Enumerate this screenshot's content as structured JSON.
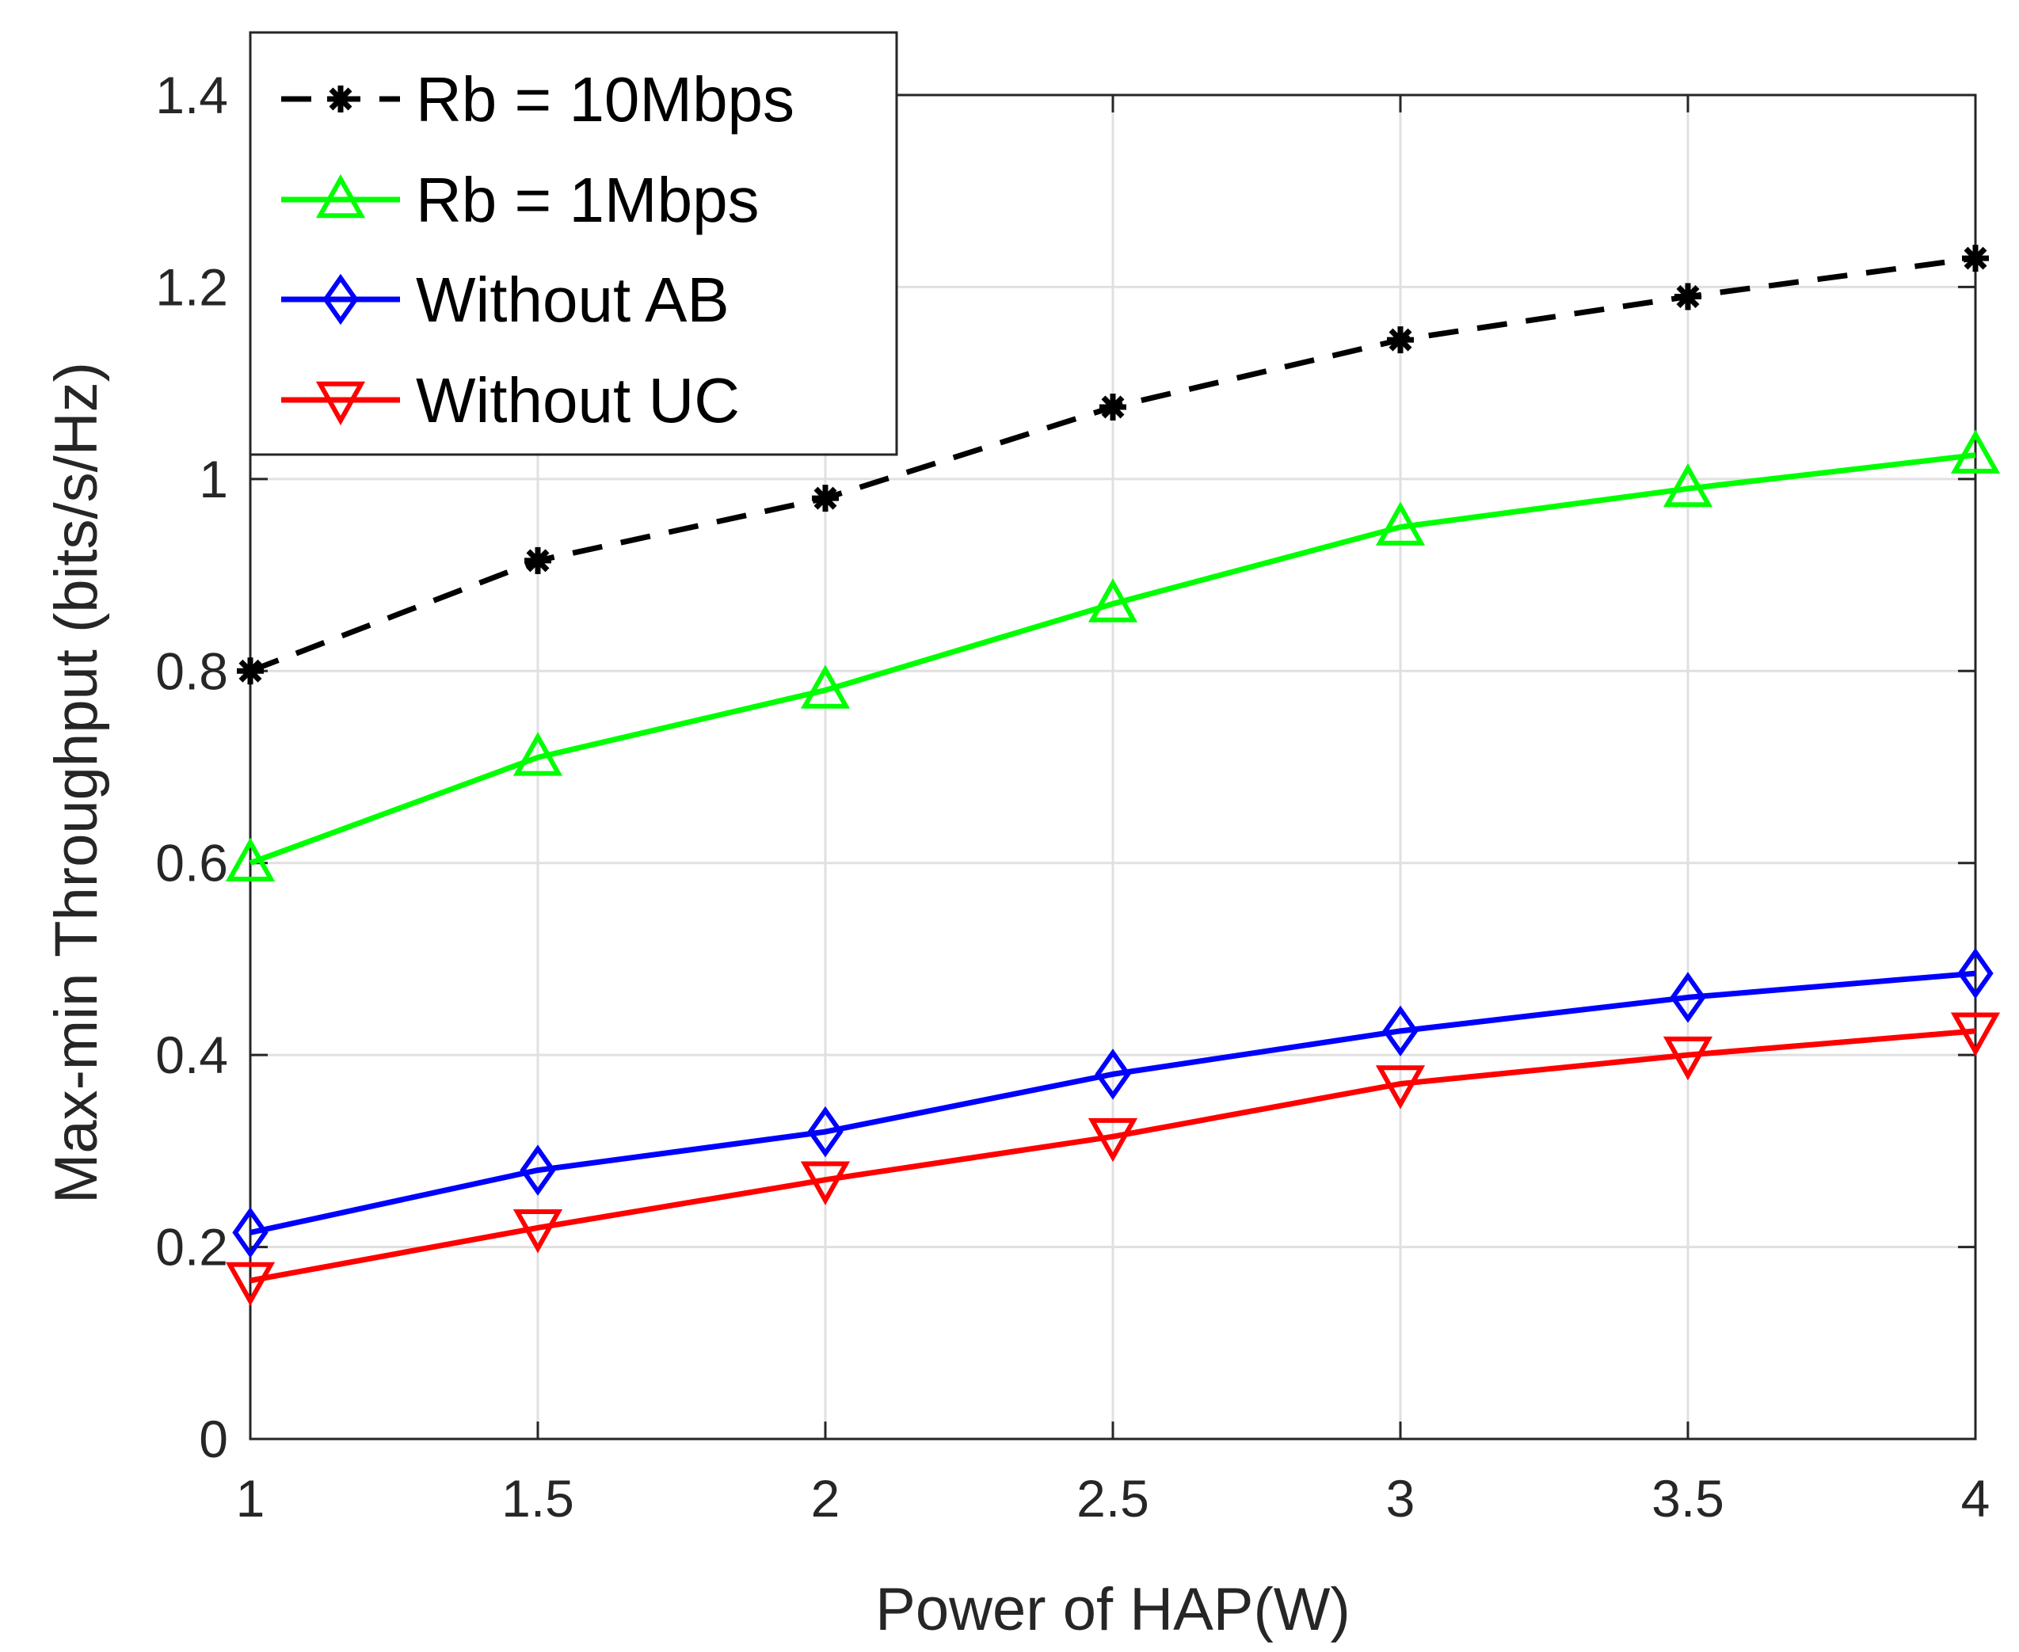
{
  "chart_data": {
    "type": "line",
    "title": "",
    "xlabel": "Power of HAP(W)",
    "ylabel": "Max-min Throughput (bits/s/Hz)",
    "xlim": [
      1,
      4
    ],
    "ylim": [
      0,
      1.4
    ],
    "x": [
      1,
      1.5,
      2,
      2.5,
      3,
      3.5,
      4
    ],
    "xticks": [
      "1",
      "1.5",
      "2",
      "2.5",
      "3",
      "3.5",
      "4"
    ],
    "yticks": [
      "0",
      "0.2",
      "0.4",
      "0.6",
      "0.8",
      "1",
      "1.2",
      "1.4"
    ],
    "grid": true,
    "legend_position": "top-left",
    "series": [
      {
        "name": "Rb = 10Mbps",
        "color": "#000000",
        "marker": "asterisk",
        "dashed": true,
        "values": [
          0.8,
          0.915,
          0.98,
          1.075,
          1.145,
          1.19,
          1.23
        ]
      },
      {
        "name": "Rb = 1Mbps",
        "color": "#00ff00",
        "marker": "triangle-up",
        "dashed": false,
        "values": [
          0.6,
          0.71,
          0.78,
          0.87,
          0.95,
          0.99,
          1.025
        ]
      },
      {
        "name": "Without AB",
        "color": "#0000ff",
        "marker": "diamond",
        "dashed": false,
        "values": [
          0.215,
          0.28,
          0.32,
          0.38,
          0.425,
          0.46,
          0.485
        ]
      },
      {
        "name": "Without UC",
        "color": "#ff0000",
        "marker": "triangle-down",
        "dashed": false,
        "values": [
          0.165,
          0.22,
          0.27,
          0.315,
          0.37,
          0.4,
          0.425
        ]
      }
    ]
  }
}
